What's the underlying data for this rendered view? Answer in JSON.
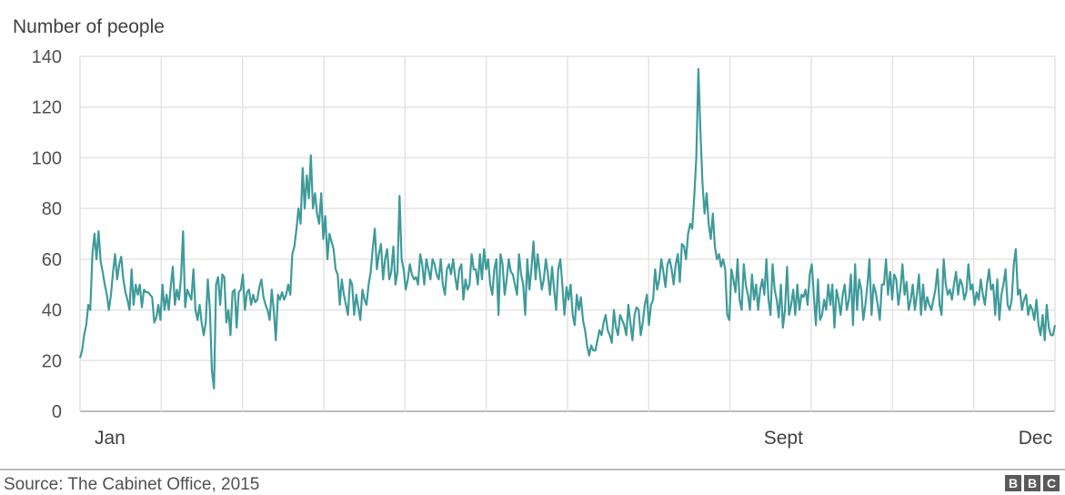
{
  "chart_data": {
    "type": "line",
    "title": "",
    "ylabel": "Number of people",
    "xlabel": "",
    "ylim": [
      0,
      140
    ],
    "yticks": [
      0,
      20,
      40,
      60,
      80,
      100,
      120,
      140
    ],
    "x_labels": [
      {
        "text": "Jan",
        "day": 1
      },
      {
        "text": "Sept",
        "day": 250
      },
      {
        "text": "Dec",
        "day": 345
      }
    ],
    "grid": true,
    "line_color": "#3f9a9a",
    "series": [
      {
        "values": [
          21,
          24,
          30,
          34,
          42,
          40,
          62,
          70,
          60,
          71,
          59,
          55,
          50,
          46,
          40,
          46,
          55,
          62,
          52,
          58,
          61,
          52,
          47,
          44,
          40,
          56,
          42,
          50,
          46,
          50,
          41,
          48,
          47,
          47,
          46,
          45,
          35,
          37,
          42,
          36,
          50,
          40,
          46,
          40,
          49,
          57,
          42,
          48,
          44,
          53,
          71,
          41,
          48,
          46,
          44,
          56,
          40,
          36,
          42,
          35,
          30,
          35,
          52,
          40,
          16,
          9,
          50,
          53,
          42,
          54,
          53,
          35,
          40,
          30,
          47,
          48,
          33,
          47,
          48,
          54,
          40,
          47,
          48,
          42,
          46,
          43,
          44,
          49,
          52,
          45,
          42,
          40,
          36,
          48,
          40,
          28,
          46,
          44,
          47,
          44,
          46,
          50,
          46,
          62,
          65,
          72,
          80,
          74,
          96,
          80,
          93,
          84,
          101,
          80,
          86,
          78,
          74,
          86,
          68,
          77,
          60,
          70,
          67,
          64,
          56,
          54,
          42,
          52,
          46,
          42,
          38,
          52,
          50,
          38,
          46,
          41,
          36,
          48,
          44,
          42,
          50,
          55,
          64,
          72,
          56,
          62,
          66,
          52,
          60,
          64,
          52,
          55,
          65,
          50,
          55,
          85,
          60,
          56,
          48,
          52,
          58,
          54,
          52,
          53,
          50,
          62,
          58,
          50,
          60,
          56,
          52,
          60,
          58,
          54,
          52,
          60,
          50,
          46,
          56,
          58,
          54,
          60,
          53,
          48,
          56,
          58,
          44,
          52,
          48,
          50,
          62,
          56,
          56,
          50,
          62,
          52,
          64,
          56,
          60,
          50,
          46,
          56,
          60,
          38,
          62,
          58,
          46,
          52,
          60,
          55,
          54,
          50,
          46,
          62,
          54,
          50,
          38,
          60,
          48,
          56,
          67,
          52,
          62,
          55,
          48,
          52,
          60,
          54,
          46,
          57,
          48,
          40,
          56,
          60,
          50,
          38,
          49,
          44,
          50,
          38,
          34,
          46,
          40,
          45,
          36,
          32,
          26,
          22,
          26,
          24,
          24,
          28,
          32,
          30,
          35,
          38,
          32,
          30,
          27,
          40,
          33,
          30,
          38,
          36,
          34,
          30,
          42,
          35,
          28,
          38,
          41,
          40,
          30,
          35,
          42,
          46,
          34,
          42,
          44,
          56,
          48,
          52,
          60,
          55,
          49,
          58,
          60,
          56,
          50,
          58,
          62,
          51,
          66,
          65,
          60,
          70,
          74,
          72,
          85,
          100,
          135,
          110,
          90,
          78,
          86,
          74,
          68,
          78,
          65,
          60,
          62,
          57,
          60,
          56,
          38,
          36,
          56,
          52,
          47,
          60,
          44,
          40,
          58,
          50,
          46,
          40,
          54,
          44,
          50,
          40,
          48,
          52,
          46,
          60,
          44,
          38,
          58,
          48,
          44,
          37,
          50,
          33,
          40,
          57,
          38,
          42,
          48,
          38,
          50,
          40,
          46,
          45,
          48,
          42,
          54,
          58,
          46,
          34,
          52,
          36,
          38,
          44,
          40,
          50,
          42,
          50,
          33,
          48,
          44,
          38,
          46,
          50,
          40,
          44,
          54,
          34,
          58,
          40,
          52,
          48,
          36,
          42,
          50,
          60,
          38,
          50,
          47,
          42,
          36,
          50,
          50,
          60,
          46,
          55,
          44,
          54,
          52,
          42,
          48,
          58,
          46,
          51,
          40,
          44,
          50,
          40,
          46,
          54,
          38,
          50,
          40,
          45,
          42,
          40,
          44,
          48,
          56,
          42,
          38,
          60,
          50,
          46,
          48,
          44,
          50,
          55,
          46,
          52,
          50,
          44,
          47,
          58,
          48,
          50,
          42,
          47,
          44,
          52,
          46,
          42,
          50,
          56,
          48,
          50,
          38,
          52,
          36,
          46,
          50,
          56,
          42,
          40,
          44,
          58,
          64,
          46,
          48,
          40,
          44,
          46,
          38,
          42,
          40,
          36,
          44,
          34,
          30,
          38,
          28,
          42,
          33,
          30,
          30,
          34
        ]
      }
    ],
    "x_range": [
      1,
      365
    ]
  },
  "footer": {
    "source": "Source: The Cabinet Office, 2015",
    "logo_letters": [
      "B",
      "B",
      "C"
    ]
  }
}
